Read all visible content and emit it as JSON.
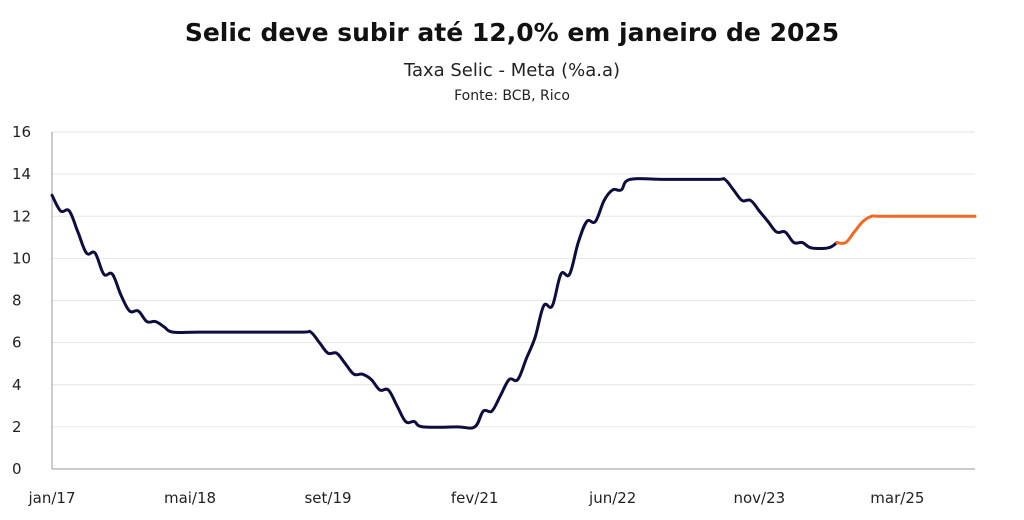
{
  "chart_data": {
    "type": "line",
    "title": "Selic deve subir até 12,0% em janeiro de 2025",
    "subtitle": "Taxa Selic - Meta (%a.a)",
    "source": "Fonte: BCB, Rico",
    "xlabel": "",
    "ylabel": "",
    "ylim": [
      0,
      16
    ],
    "yticks": [
      "0",
      "2",
      "4",
      "6",
      "8",
      "10",
      "12",
      "14",
      "16"
    ],
    "xlim": [
      "2017-01",
      "2025-12"
    ],
    "xticks": [
      {
        "label": "jan/17",
        "date": "2017-01"
      },
      {
        "label": "mai/18",
        "date": "2018-05"
      },
      {
        "label": "set/19",
        "date": "2019-09"
      },
      {
        "label": "fev/21",
        "date": "2021-02"
      },
      {
        "label": "jun/22",
        "date": "2022-06"
      },
      {
        "label": "nov/23",
        "date": "2023-11"
      },
      {
        "label": "mar/25",
        "date": "2025-03"
      }
    ],
    "grid": true,
    "series": [
      {
        "color": "#0d0d3f",
        "points": [
          [
            "2017-01",
            13.0
          ],
          [
            "2017-02",
            12.25
          ],
          [
            "2017-03",
            12.25
          ],
          [
            "2017-04",
            11.25
          ],
          [
            "2017-05",
            10.25
          ],
          [
            "2017-06",
            10.25
          ],
          [
            "2017-07",
            9.25
          ],
          [
            "2017-08",
            9.25
          ],
          [
            "2017-09",
            8.25
          ],
          [
            "2017-10",
            7.5
          ],
          [
            "2017-11",
            7.5
          ],
          [
            "2017-12",
            7.0
          ],
          [
            "2018-01",
            7.0
          ],
          [
            "2018-02",
            6.75
          ],
          [
            "2018-03",
            6.5
          ],
          [
            "2018-06",
            6.5
          ],
          [
            "2018-12",
            6.5
          ],
          [
            "2019-06",
            6.5
          ],
          [
            "2019-07",
            6.5
          ],
          [
            "2019-08",
            6.0
          ],
          [
            "2019-09",
            5.5
          ],
          [
            "2019-10",
            5.5
          ],
          [
            "2019-11",
            5.0
          ],
          [
            "2019-12",
            4.5
          ],
          [
            "2020-01",
            4.5
          ],
          [
            "2020-02",
            4.25
          ],
          [
            "2020-03",
            3.75
          ],
          [
            "2020-04",
            3.75
          ],
          [
            "2020-05",
            3.0
          ],
          [
            "2020-06",
            2.25
          ],
          [
            "2020-07",
            2.25
          ],
          [
            "2020-08",
            2.0
          ],
          [
            "2020-12",
            2.0
          ],
          [
            "2021-02",
            2.0
          ],
          [
            "2021-03",
            2.75
          ],
          [
            "2021-04",
            2.75
          ],
          [
            "2021-05",
            3.5
          ],
          [
            "2021-06",
            4.25
          ],
          [
            "2021-07",
            4.25
          ],
          [
            "2021-08",
            5.25
          ],
          [
            "2021-09",
            6.25
          ],
          [
            "2021-10",
            7.75
          ],
          [
            "2021-11",
            7.75
          ],
          [
            "2021-12",
            9.25
          ],
          [
            "2022-01",
            9.25
          ],
          [
            "2022-02",
            10.75
          ],
          [
            "2022-03",
            11.75
          ],
          [
            "2022-04",
            11.75
          ],
          [
            "2022-05",
            12.75
          ],
          [
            "2022-06",
            13.25
          ],
          [
            "2022-07",
            13.25
          ],
          [
            "2022-08",
            13.75
          ],
          [
            "2022-12",
            13.75
          ],
          [
            "2023-06",
            13.75
          ],
          [
            "2023-07",
            13.75
          ],
          [
            "2023-08",
            13.25
          ],
          [
            "2023-09",
            12.75
          ],
          [
            "2023-10",
            12.75
          ],
          [
            "2023-11",
            12.25
          ],
          [
            "2023-12",
            11.75
          ],
          [
            "2024-01",
            11.25
          ],
          [
            "2024-02",
            11.25
          ],
          [
            "2024-03",
            10.75
          ],
          [
            "2024-04",
            10.75
          ],
          [
            "2024-05",
            10.5
          ],
          [
            "2024-07",
            10.5
          ],
          [
            "2024-08",
            10.75
          ]
        ]
      },
      {
        "color": "#f26a21",
        "points": [
          [
            "2024-08",
            10.75
          ],
          [
            "2024-09",
            10.75
          ],
          [
            "2024-10",
            11.25
          ],
          [
            "2024-11",
            11.75
          ],
          [
            "2024-12",
            12.0
          ],
          [
            "2025-01",
            12.0
          ],
          [
            "2025-06",
            12.0
          ],
          [
            "2025-12",
            12.0
          ]
        ]
      }
    ]
  }
}
